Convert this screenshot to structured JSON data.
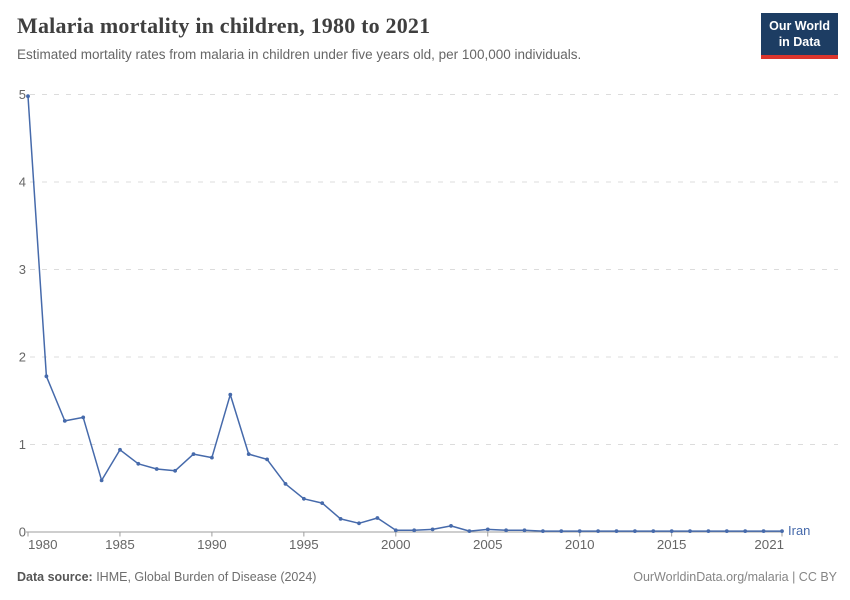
{
  "header": {
    "title": "Malaria mortality in children, 1980 to 2021",
    "subtitle": "Estimated mortality rates from malaria in children under five years old, per 100,000 individuals.",
    "logo_line1": "Our World",
    "logo_line2": "in Data"
  },
  "chart_data": {
    "type": "line",
    "title": "Malaria mortality in children, 1980 to 2021",
    "xlabel": "",
    "ylabel": "",
    "xlim": [
      1980,
      2021
    ],
    "ylim": [
      0,
      5
    ],
    "x_ticks": [
      1980,
      1985,
      1990,
      1995,
      2000,
      2005,
      2010,
      2015,
      2021
    ],
    "y_ticks": [
      0,
      1,
      2,
      3,
      4,
      5
    ],
    "grid": "horizontal-dashed",
    "legend_position": "end-of-line-label",
    "x": [
      1980,
      1981,
      1982,
      1983,
      1984,
      1985,
      1986,
      1987,
      1988,
      1989,
      1990,
      1991,
      1992,
      1993,
      1994,
      1995,
      1996,
      1997,
      1998,
      1999,
      2000,
      2001,
      2002,
      2003,
      2004,
      2005,
      2006,
      2007,
      2008,
      2009,
      2010,
      2011,
      2012,
      2013,
      2014,
      2015,
      2016,
      2017,
      2018,
      2019,
      2020,
      2021
    ],
    "series": [
      {
        "name": "Iran",
        "color": "#466aab",
        "values": [
          4.98,
          1.78,
          1.27,
          1.31,
          0.59,
          0.94,
          0.78,
          0.72,
          0.7,
          0.89,
          0.85,
          1.57,
          0.89,
          0.83,
          0.55,
          0.38,
          0.33,
          0.15,
          0.1,
          0.16,
          0.02,
          0.02,
          0.03,
          0.07,
          0.01,
          0.03,
          0.02,
          0.02,
          0.01,
          0.01,
          0.01,
          0.01,
          0.01,
          0.01,
          0.01,
          0.01,
          0.01,
          0.01,
          0.01,
          0.01,
          0.01,
          0.01
        ]
      }
    ],
    "colors": {
      "line": "#466aab",
      "gridline": "#dcdcdc",
      "axis": "#9e9e9e",
      "tick_text": "#666666"
    }
  },
  "footer": {
    "source_label": "Data source:",
    "source_value": " IHME, Global Burden of Disease (2024)",
    "credit": "OurWorldinData.org/malaria | CC BY"
  }
}
